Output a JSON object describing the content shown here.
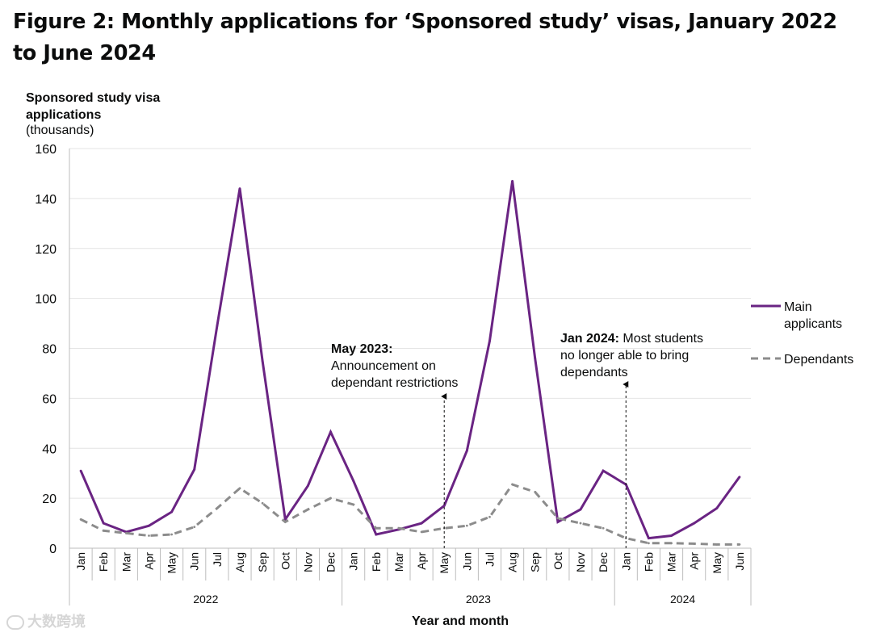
{
  "figure_title": "Figure 2: Monthly applications for ‘Sponsored study’ visas, January 2022 to June 2024",
  "watermark_text": "大数跨境",
  "chart_data": {
    "type": "line",
    "title": "Figure 2: Monthly applications for ‘Sponsored study’ visas, January 2022 to June 2024",
    "ylabel_lines": [
      "Sponsored study visa",
      "applications"
    ],
    "ylabel_units": "(thousands)",
    "xlabel": "Year and month",
    "ylim": [
      0,
      160
    ],
    "yticks": [
      0,
      20,
      40,
      60,
      80,
      100,
      120,
      140,
      160
    ],
    "categories": [
      "Jan",
      "Feb",
      "Mar",
      "Apr",
      "May",
      "Jun",
      "Jul",
      "Aug",
      "Sep",
      "Oct",
      "Nov",
      "Dec",
      "Jan",
      "Feb",
      "Mar",
      "Apr",
      "May",
      "Jun",
      "Jul",
      "Aug",
      "Sep",
      "Oct",
      "Nov",
      "Dec",
      "Jan",
      "Feb",
      "Mar",
      "Apr",
      "May",
      "Jun"
    ],
    "years": [
      {
        "label": "2022",
        "start": 0,
        "end": 11
      },
      {
        "label": "2023",
        "start": 12,
        "end": 23
      },
      {
        "label": "2024",
        "start": 24,
        "end": 29
      }
    ],
    "series": [
      {
        "name": "Main applicants",
        "legend_lines": [
          "Main",
          "applicants"
        ],
        "color": "#6a2483",
        "dash": "solid",
        "values": [
          31,
          10,
          6.5,
          9,
          14.5,
          31.5,
          89,
          144,
          75,
          11.5,
          25,
          46.5,
          27,
          5.5,
          7.5,
          10,
          17,
          39,
          83,
          147,
          76,
          10.5,
          15.5,
          31,
          25.5,
          4,
          5,
          10,
          16,
          28.5
        ]
      },
      {
        "name": "Dependants",
        "legend_lines": [
          "Dependants"
        ],
        "color": "#8c8c8c",
        "dash": "dashed",
        "values": [
          11.5,
          7,
          6,
          5,
          5.5,
          8.5,
          16,
          24,
          18,
          10.5,
          15.5,
          20,
          17.5,
          8,
          8,
          6.5,
          8,
          9,
          12.5,
          25.5,
          22.5,
          12,
          10,
          8,
          4,
          2,
          2,
          1.8,
          1.5,
          1.5
        ]
      }
    ],
    "annotations": [
      {
        "bold": "May 2023:",
        "rest": "",
        "lines": [
          "Announcement on",
          "dependant restrictions"
        ],
        "index": 16
      },
      {
        "bold": "Jan 2024:",
        "rest": "Most students",
        "lines": [
          "no longer able to bring",
          "dependants"
        ],
        "index": 24
      }
    ],
    "grid": true,
    "legend_position": "right"
  }
}
